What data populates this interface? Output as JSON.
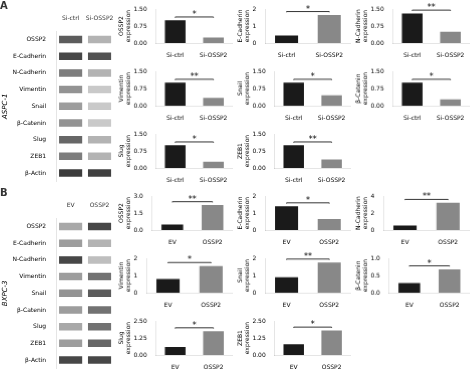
{
  "chart_data": [
    {
      "type": "heatmap",
      "title": "A",
      "y_label": "ASPC-1",
      "categories": [
        "OSSP2",
        "E-Cadherin",
        "N-Cadherin",
        "Vimentin",
        "Snail",
        "β-Catenin",
        "Slug",
        "ZEB1",
        "β-Actin"
      ],
      "columns": [
        "Si-ctrl",
        "Si-OSSP2"
      ],
      "cells": [
        [
          0.75,
          0.35
        ],
        [
          0.85,
          0.8
        ],
        [
          0.6,
          0.35
        ],
        [
          0.5,
          0.25
        ],
        [
          0.45,
          0.25
        ],
        [
          0.5,
          0.25
        ],
        [
          0.7,
          0.35
        ],
        [
          0.6,
          0.35
        ],
        [
          0.9,
          0.88
        ]
      ]
    },
    {
      "type": "bar",
      "y_label": "OSSP2\nexpression",
      "categories": [
        "Si-ctrl",
        "Si-OSSP2"
      ],
      "values": [
        1.0,
        0.25
      ],
      "colors": [
        "#1a1a1a",
        "#888888"
      ],
      "annotations": [
        "*"
      ],
      "ylim": [
        0,
        1.5
      ],
      "yticks": [
        {
          "value": 0,
          "label": "0.00"
        },
        0.75,
        {
          "value": 1.5,
          "label": "1.50"
        }
      ],
      "grid": false
    },
    {
      "type": "bar",
      "y_label": "E-Cadherin\nexpression",
      "categories": [
        "Si-ctrl",
        "Si-OSSP2"
      ],
      "values": [
        0.45,
        1.65
      ],
      "colors": [
        "#1a1a1a",
        "#888888"
      ],
      "annotations": [
        "*"
      ],
      "ylim": [
        0,
        2.0
      ],
      "yticks": [
        0,
        1,
        2
      ],
      "grid": false
    },
    {
      "type": "bar",
      "y_label": "N-Cadherin\nexpression",
      "categories": [
        "Si-ctrl",
        "Si-OSSP2"
      ],
      "values": [
        1.3,
        0.5
      ],
      "colors": [
        "#1a1a1a",
        "#888888"
      ],
      "annotations": [
        "**"
      ],
      "ylim": [
        0,
        1.5
      ],
      "yticks": [
        {
          "value": 0,
          "label": "0.00"
        },
        0.75,
        {
          "value": 1.5,
          "label": "1.50"
        }
      ],
      "grid": false
    },
    {
      "type": "bar",
      "y_label": "Vimentin\nexpression",
      "categories": [
        "Si-ctrl",
        "Si-OSSP2"
      ],
      "values": [
        1.0,
        0.35
      ],
      "colors": [
        "#1a1a1a",
        "#888888"
      ],
      "annotations": [
        "**"
      ],
      "ylim": [
        0,
        1.5
      ],
      "yticks": [
        {
          "value": 0,
          "label": "0.00"
        },
        0.75,
        {
          "value": 1.5,
          "label": "1.50"
        }
      ],
      "grid": false
    },
    {
      "type": "bar",
      "y_label": "Snail\nexpression",
      "categories": [
        "Si-ctrl",
        "Si-OSSP2"
      ],
      "values": [
        1.0,
        0.45
      ],
      "colors": [
        "#1a1a1a",
        "#888888"
      ],
      "annotations": [
        "*"
      ],
      "ylim": [
        0,
        1.5
      ],
      "yticks": [
        {
          "value": 0,
          "label": "0.00"
        },
        0.75,
        {
          "value": 1.5,
          "label": "1.50"
        }
      ],
      "grid": false
    },
    {
      "type": "bar",
      "y_label": "β-Catenin\nexpression",
      "categories": [
        "Si-ctrl",
        "Si-OSSP2"
      ],
      "values": [
        1.0,
        0.28
      ],
      "colors": [
        "#1a1a1a",
        "#888888"
      ],
      "annotations": [
        "*"
      ],
      "ylim": [
        0,
        1.5
      ],
      "yticks": [
        {
          "value": 0,
          "label": "0.00"
        },
        0.75,
        {
          "value": 1.5,
          "label": "1.50"
        }
      ],
      "grid": false
    },
    {
      "type": "bar",
      "y_label": "Slug\nexpression",
      "categories": [
        "Si-ctrl",
        "Si-OSSP2"
      ],
      "values": [
        1.0,
        0.28
      ],
      "colors": [
        "#1a1a1a",
        "#888888"
      ],
      "annotations": [
        "*"
      ],
      "ylim": [
        0,
        1.5
      ],
      "yticks": [
        {
          "value": 0,
          "label": "0.00"
        },
        0.75,
        {
          "value": 1.5,
          "label": "1.50"
        }
      ],
      "grid": false
    },
    {
      "type": "bar",
      "y_label": "ZEB1\nexpression",
      "categories": [
        "Si-ctrl",
        "Si-OSSP2"
      ],
      "values": [
        1.0,
        0.38
      ],
      "colors": [
        "#1a1a1a",
        "#888888"
      ],
      "annotations": [
        "**"
      ],
      "ylim": [
        0,
        1.5
      ],
      "yticks": [
        {
          "value": 0,
          "label": "0.00"
        },
        0.75,
        {
          "value": 1.5,
          "label": "1.50"
        }
      ],
      "grid": false
    },
    {
      "type": "heatmap",
      "title": "B",
      "y_label": "BXPC-3",
      "categories": [
        "OSSP2",
        "E-Cadherin",
        "N-Cadherin",
        "Vimentin",
        "Snail",
        "β-Catenin",
        "Slug",
        "ZEB1",
        "β-Actin"
      ],
      "columns": [
        "EV",
        "OSSP2"
      ],
      "cells": [
        [
          0.4,
          0.85
        ],
        [
          0.45,
          0.35
        ],
        [
          0.85,
          0.3
        ],
        [
          0.45,
          0.65
        ],
        [
          0.5,
          0.75
        ],
        [
          0.45,
          0.65
        ],
        [
          0.4,
          0.65
        ],
        [
          0.45,
          0.7
        ],
        [
          0.85,
          0.85
        ]
      ]
    },
    {
      "type": "bar",
      "y_label": "OSSP2\nexpression",
      "categories": [
        "EV",
        "OSSP2"
      ],
      "values": [
        0.5,
        2.2
      ],
      "colors": [
        "#1a1a1a",
        "#888888"
      ],
      "annotations": [
        "**"
      ],
      "ylim": [
        0,
        3.0
      ],
      "yticks": [
        {
          "value": 0,
          "label": "0.0"
        },
        1.5,
        {
          "value": 3,
          "label": "3.0"
        }
      ],
      "grid": false
    },
    {
      "type": "bar",
      "y_label": "E-Cadherin\nexpression",
      "categories": [
        "EV",
        "OSSP2"
      ],
      "values": [
        1.4,
        0.65
      ],
      "colors": [
        "#1a1a1a",
        "#888888"
      ],
      "annotations": [
        "*"
      ],
      "ylim": [
        0,
        2.0
      ],
      "yticks": [
        0,
        1,
        2
      ],
      "grid": false
    },
    {
      "type": "bar",
      "y_label": "N-Cadherin\nexpression",
      "categories": [
        "EV",
        "OSSP2"
      ],
      "values": [
        0.55,
        3.2
      ],
      "colors": [
        "#1a1a1a",
        "#888888"
      ],
      "annotations": [
        "**"
      ],
      "ylim": [
        0,
        4.0
      ],
      "yticks": [
        0,
        2,
        4
      ],
      "grid": false
    },
    {
      "type": "bar",
      "y_label": "Vimentin\nexpression",
      "categories": [
        "EV",
        "OSSP2"
      ],
      "values": [
        0.8,
        1.55
      ],
      "colors": [
        "#1a1a1a",
        "#888888"
      ],
      "annotations": [
        "*"
      ],
      "ylim": [
        0,
        2.0
      ],
      "yticks": [
        0,
        1,
        2
      ],
      "grid": false
    },
    {
      "type": "bar",
      "y_label": "Snail\nexpression",
      "categories": [
        "EV",
        "OSSP2"
      ],
      "values": [
        0.9,
        1.75
      ],
      "colors": [
        "#1a1a1a",
        "#888888"
      ],
      "annotations": [
        "**"
      ],
      "ylim": [
        0,
        2.0
      ],
      "yticks": [
        0,
        1,
        2
      ],
      "grid": false
    },
    {
      "type": "bar",
      "y_label": "β-Catenin\nexpression",
      "categories": [
        "EV",
        "OSSP2"
      ],
      "values": [
        0.28,
        0.68
      ],
      "colors": [
        "#1a1a1a",
        "#888888"
      ],
      "annotations": [
        "*"
      ],
      "ylim": [
        0,
        1.0
      ],
      "yticks": [
        {
          "value": 0,
          "label": "0.0"
        },
        0.5,
        {
          "value": 1,
          "label": "1.0"
        }
      ],
      "grid": false
    },
    {
      "type": "bar",
      "y_label": "Slug\nexpression",
      "categories": [
        "EV",
        "OSSP2"
      ],
      "values": [
        0.6,
        1.75
      ],
      "colors": [
        "#1a1a1a",
        "#888888"
      ],
      "annotations": [
        "*"
      ],
      "ylim": [
        0,
        2.5
      ],
      "yticks": [
        {
          "value": 0,
          "label": "0.00"
        },
        1.25,
        {
          "value": 2.5,
          "label": "2.50"
        }
      ],
      "grid": false
    },
    {
      "type": "bar",
      "y_label": "ZEB1\nexpression",
      "categories": [
        "EV",
        "OSSP2"
      ],
      "values": [
        0.8,
        1.8
      ],
      "colors": [
        "#1a1a1a",
        "#888888"
      ],
      "annotations": [
        "*"
      ],
      "ylim": [
        0,
        2.5
      ],
      "yticks": [
        {
          "value": 0,
          "label": "0.00"
        },
        1.25,
        {
          "value": 2.5,
          "label": "2.50"
        }
      ],
      "grid": false
    }
  ]
}
